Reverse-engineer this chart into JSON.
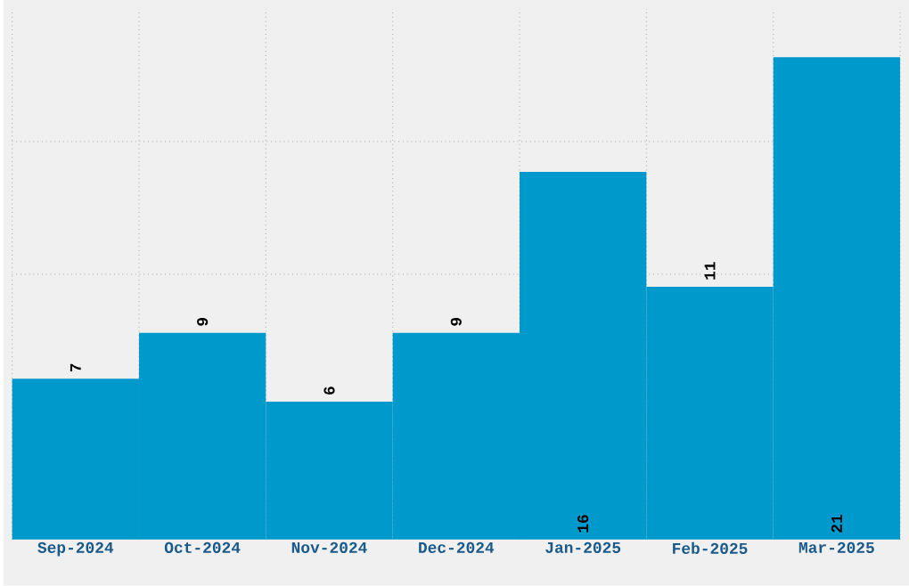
{
  "chart_data": {
    "type": "bar",
    "categories": [
      "Sep-2024",
      "Oct-2024",
      "Nov-2024",
      "Dec-2024",
      "Jan-2025",
      "Feb-2025",
      "Mar-2025"
    ],
    "values": [
      7,
      9,
      6,
      9,
      16,
      11,
      21
    ],
    "color": "#0099cc",
    "ylim": [
      0,
      23.1
    ],
    "yticks": [
      {
        "value": 5.775,
        "label": null
      },
      {
        "value": 11.55,
        "label": null
      },
      {
        "value": 17.325,
        "label": null
      }
    ],
    "tick_labels": "x",
    "grid": true,
    "data_labels": true
  }
}
